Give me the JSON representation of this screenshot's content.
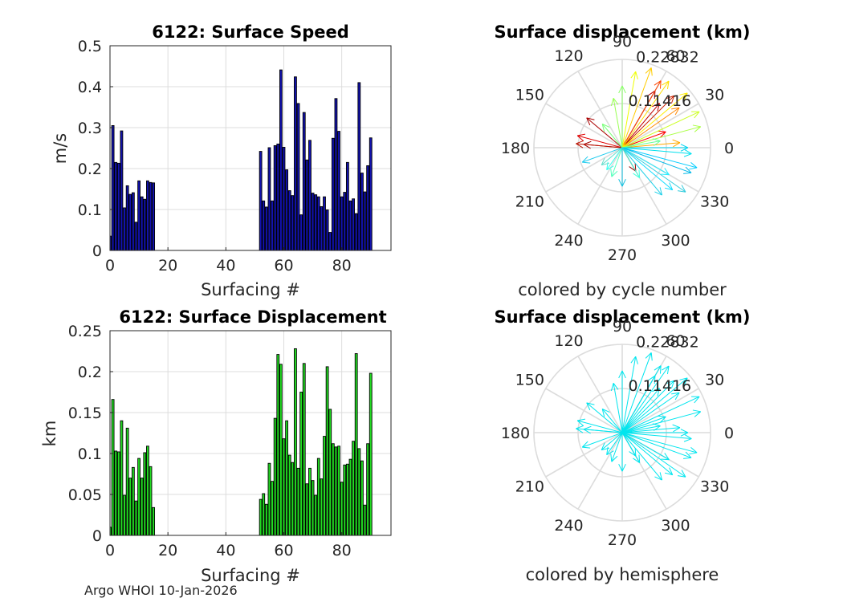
{
  "figure": {
    "footer": "Argo WHOI 10-Jan-2026"
  },
  "colors": {
    "speed_bar": "#1212b0",
    "displacement_bar": "#22dd22",
    "hemisphere_arrow": "#00e5ee",
    "grid": "#dcdcdc",
    "axis": "#262626"
  },
  "chart_data": [
    {
      "id": "speed",
      "type": "bar",
      "title": "6122: Surface Speed",
      "xlabel": "Surfacing #",
      "ylabel": "m/s",
      "xlim": [
        0,
        97
      ],
      "ylim": [
        0,
        0.5
      ],
      "xticks": [
        0,
        20,
        40,
        60,
        80
      ],
      "yticks": [
        0,
        0.1,
        0.2,
        0.3,
        0.4,
        0.5
      ],
      "ytick_labels": [
        "0",
        "0.1",
        "0.2",
        "0.3",
        "0.4",
        "0.5"
      ],
      "x": [
        0,
        1,
        2,
        3,
        4,
        5,
        6,
        7,
        8,
        9,
        10,
        11,
        12,
        13,
        14,
        15,
        52,
        53,
        54,
        55,
        56,
        57,
        58,
        59,
        60,
        61,
        62,
        63,
        64,
        65,
        66,
        67,
        68,
        69,
        70,
        71,
        72,
        73,
        74,
        75,
        76,
        77,
        78,
        79,
        80,
        81,
        82,
        83,
        84,
        85,
        86,
        87,
        88,
        89,
        90
      ],
      "values": [
        0.035,
        0.305,
        0.215,
        0.213,
        0.292,
        0.104,
        0.158,
        0.137,
        0.141,
        0.069,
        0.17,
        0.131,
        0.125,
        0.17,
        0.166,
        0.165,
        0.242,
        0.121,
        0.106,
        0.251,
        0.121,
        0.256,
        0.26,
        0.441,
        0.252,
        0.197,
        0.146,
        0.134,
        0.424,
        0.359,
        0.087,
        0.337,
        0.221,
        0.269,
        0.14,
        0.136,
        0.131,
        0.107,
        0.131,
        0.099,
        0.044,
        0.274,
        0.371,
        0.291,
        0.131,
        0.142,
        0.215,
        0.121,
        0.126,
        0.09,
        0.41,
        0.189,
        0.143,
        0.207,
        0.275
      ]
    },
    {
      "id": "displacement",
      "type": "bar",
      "title": "6122: Surface Displacement",
      "xlabel": "Surfacing #",
      "ylabel": "km",
      "xlim": [
        0,
        97
      ],
      "ylim": [
        0,
        0.25
      ],
      "xticks": [
        0,
        20,
        40,
        60,
        80
      ],
      "yticks": [
        0,
        0.05,
        0.1,
        0.15,
        0.2,
        0.25
      ],
      "ytick_labels": [
        "0",
        "0.05",
        "0.1",
        "0.15",
        "0.2",
        "0.25"
      ],
      "x": [
        0,
        1,
        2,
        3,
        4,
        5,
        6,
        7,
        8,
        9,
        10,
        11,
        12,
        13,
        14,
        15,
        52,
        53,
        54,
        55,
        56,
        57,
        58,
        59,
        60,
        61,
        62,
        63,
        64,
        65,
        66,
        67,
        68,
        69,
        70,
        71,
        72,
        73,
        74,
        75,
        76,
        77,
        78,
        79,
        80,
        81,
        82,
        83,
        84,
        85,
        86,
        87,
        88,
        89,
        90
      ],
      "values": [
        0.01,
        0.166,
        0.103,
        0.102,
        0.14,
        0.049,
        0.131,
        0.07,
        0.083,
        0.042,
        0.094,
        0.07,
        0.101,
        0.109,
        0.084,
        0.034,
        0.044,
        0.051,
        0.038,
        0.088,
        0.066,
        0.143,
        0.221,
        0.209,
        0.118,
        0.14,
        0.098,
        0.089,
        0.228,
        0.082,
        0.175,
        0.21,
        0.063,
        0.082,
        0.067,
        0.049,
        0.094,
        0.069,
        0.121,
        0.206,
        0.154,
        0.112,
        0.108,
        0.109,
        0.065,
        0.086,
        0.087,
        0.093,
        0.115,
        0.222,
        0.106,
        0.091,
        0.037,
        0.112,
        0.198
      ]
    },
    {
      "id": "polar-cycle",
      "type": "polar",
      "title": "Surface displacement (km)",
      "caption": "colored by cycle number",
      "rmax": 0.22832,
      "r_labels": [
        "0.11416",
        "0.22832"
      ],
      "theta_labels": [
        "0",
        "30",
        "60",
        "90",
        "120",
        "150",
        "180",
        "210",
        "240",
        "270",
        "300",
        "330"
      ],
      "vectors": [
        {
          "theta": 20,
          "r": 0.12,
          "color": "#ff0000"
        },
        {
          "theta": 165,
          "r": 0.12,
          "color": "#e00000"
        },
        {
          "theta": 50,
          "r": 0.15,
          "color": "#c00000"
        },
        {
          "theta": 140,
          "r": 0.12,
          "color": "#aa0000"
        },
        {
          "theta": 175,
          "r": 0.1,
          "color": "#a00000"
        },
        {
          "theta": 60,
          "r": 0.17,
          "color": "#b00000"
        },
        {
          "theta": 300,
          "r": 0.07,
          "color": "#990000"
        },
        {
          "theta": 45,
          "r": 0.19,
          "color": "#cc2200"
        },
        {
          "theta": 175,
          "r": 0.12,
          "color": "#bb1100"
        },
        {
          "theta": 60,
          "r": 0.2,
          "color": "#ff4400"
        },
        {
          "theta": 35,
          "r": 0.18,
          "color": "#ff8800"
        },
        {
          "theta": 5,
          "r": 0.15,
          "color": "#ffaa00"
        },
        {
          "theta": 70,
          "r": 0.22,
          "color": "#ffcc00"
        },
        {
          "theta": 55,
          "r": 0.21,
          "color": "#ffdd00"
        },
        {
          "theta": 40,
          "r": 0.22,
          "color": "#ffee00"
        },
        {
          "theta": 80,
          "r": 0.2,
          "color": "#eeff00"
        },
        {
          "theta": 25,
          "r": 0.22,
          "color": "#ccff22"
        },
        {
          "theta": 15,
          "r": 0.21,
          "color": "#aaff44"
        },
        {
          "theta": 100,
          "r": 0.13,
          "color": "#99ff55"
        },
        {
          "theta": 90,
          "r": 0.16,
          "color": "#88ff66"
        },
        {
          "theta": 130,
          "r": 0.08,
          "color": "#77ff77"
        },
        {
          "theta": 10,
          "r": 0.1,
          "color": "#66ff99"
        },
        {
          "theta": 250,
          "r": 0.08,
          "color": "#55ffbb"
        },
        {
          "theta": 300,
          "r": 0.09,
          "color": "#44ffdd"
        },
        {
          "theta": 235,
          "r": 0.07,
          "color": "#33ffee"
        },
        {
          "theta": 330,
          "r": 0.14,
          "color": "#22eeff"
        },
        {
          "theta": 320,
          "r": 0.17,
          "color": "#11ddff"
        },
        {
          "theta": 345,
          "r": 0.2,
          "color": "#00ccff"
        },
        {
          "theta": 0,
          "r": 0.17,
          "color": "#00d4f0"
        },
        {
          "theta": 355,
          "r": 0.18,
          "color": "#00e0ee"
        },
        {
          "theta": 270,
          "r": 0.1,
          "color": "#10c0e0"
        },
        {
          "theta": 310,
          "r": 0.16,
          "color": "#20d0e8"
        },
        {
          "theta": 340,
          "r": 0.19,
          "color": "#00b8e8"
        },
        {
          "theta": 325,
          "r": 0.2,
          "color": "#33ccdd"
        },
        {
          "theta": 220,
          "r": 0.07,
          "color": "#66ddcc"
        },
        {
          "theta": 200,
          "r": 0.11,
          "color": "#22ccee"
        }
      ]
    },
    {
      "id": "polar-hemisphere",
      "type": "polar",
      "title": "Surface displacement (km)",
      "caption": "colored by hemisphere",
      "rmax": 0.22832,
      "r_labels": [
        "0.11416",
        "0.22832"
      ],
      "theta_labels": [
        "0",
        "30",
        "60",
        "90",
        "120",
        "150",
        "180",
        "210",
        "240",
        "270",
        "300",
        "330"
      ],
      "vectors": [
        {
          "theta": 20,
          "r": 0.12
        },
        {
          "theta": 165,
          "r": 0.12
        },
        {
          "theta": 50,
          "r": 0.15
        },
        {
          "theta": 140,
          "r": 0.12
        },
        {
          "theta": 175,
          "r": 0.1
        },
        {
          "theta": 60,
          "r": 0.17
        },
        {
          "theta": 300,
          "r": 0.07
        },
        {
          "theta": 45,
          "r": 0.19
        },
        {
          "theta": 175,
          "r": 0.12
        },
        {
          "theta": 60,
          "r": 0.2
        },
        {
          "theta": 35,
          "r": 0.18
        },
        {
          "theta": 5,
          "r": 0.15
        },
        {
          "theta": 70,
          "r": 0.22
        },
        {
          "theta": 55,
          "r": 0.21
        },
        {
          "theta": 40,
          "r": 0.22
        },
        {
          "theta": 80,
          "r": 0.2
        },
        {
          "theta": 25,
          "r": 0.22
        },
        {
          "theta": 15,
          "r": 0.21
        },
        {
          "theta": 100,
          "r": 0.13
        },
        {
          "theta": 90,
          "r": 0.16
        },
        {
          "theta": 130,
          "r": 0.08
        },
        {
          "theta": 10,
          "r": 0.1
        },
        {
          "theta": 250,
          "r": 0.08
        },
        {
          "theta": 300,
          "r": 0.09
        },
        {
          "theta": 235,
          "r": 0.07
        },
        {
          "theta": 330,
          "r": 0.14
        },
        {
          "theta": 320,
          "r": 0.17
        },
        {
          "theta": 345,
          "r": 0.2
        },
        {
          "theta": 0,
          "r": 0.17
        },
        {
          "theta": 355,
          "r": 0.18
        },
        {
          "theta": 270,
          "r": 0.1
        },
        {
          "theta": 310,
          "r": 0.16
        },
        {
          "theta": 340,
          "r": 0.19
        },
        {
          "theta": 325,
          "r": 0.2
        },
        {
          "theta": 220,
          "r": 0.07
        },
        {
          "theta": 200,
          "r": 0.11
        }
      ]
    }
  ]
}
